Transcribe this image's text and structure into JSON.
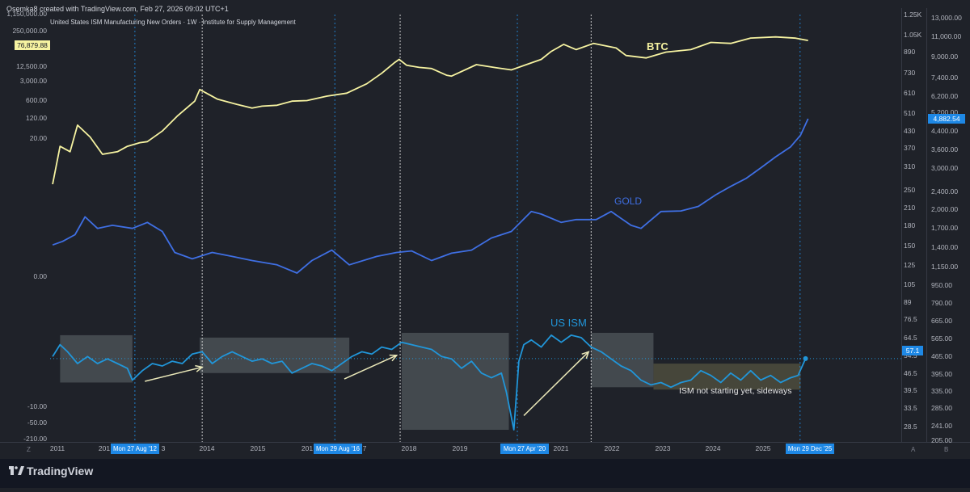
{
  "header": {
    "attribution": "Osemka8 created with TradingView.com, Feb 27, 2026 09:02 UTC+1",
    "symbol_title": "United States ISM Manufacturing New Orders · 1W · Institute for Supply Management"
  },
  "footer": {
    "brand": "TradingView",
    "corner_left": "Z",
    "corner_right_a": "A",
    "corner_right_b": "B"
  },
  "colors": {
    "background": "#1f2229",
    "btc": "#f6f3a1",
    "gold": "#3f6fe3",
    "ism": "#2196d9",
    "shade_gray": "#5a6166",
    "shade_olive": "#4a4a3c",
    "arrow": "#e9e7b8",
    "axis_text": "#b2b5be",
    "highlight_tag": "#1e88e5"
  },
  "chart_data": {
    "type": "line",
    "title": "United States ISM Manufacturing New Orders · 1W · Institute for Supply Management",
    "x_tick_labels": [
      "2011",
      "2014",
      "2015",
      "2018",
      "2019",
      "2021",
      "2022",
      "2023",
      "2024",
      "2025"
    ],
    "x_partial_labels": [
      "201",
      "3",
      "201",
      "7"
    ],
    "x_highlight_tags": [
      "Mon 27 Aug '12",
      "Mon 29 Aug '16",
      "Mon 27 Apr '20",
      "Mon 29 Dec '25"
    ],
    "left_axis_labels": [
      "1,150,000.00",
      "250,000.00",
      "12,500.00",
      "3,000.00",
      "600.00",
      "120.00",
      "20.00",
      "0.00",
      "-10.00",
      "-50.00",
      "-210.00"
    ],
    "left_axis_tag": "76,879.88",
    "mid_axis_labels": [
      "1.25K",
      "1.05K",
      "890",
      "730",
      "610",
      "510",
      "430",
      "370",
      "310",
      "250",
      "210",
      "180",
      "150",
      "125",
      "105",
      "89",
      "76.5",
      "64.5",
      "54.5",
      "46.5",
      "39.5",
      "33.5",
      "28.5"
    ],
    "right_axis_labels": [
      "13,000.00",
      "11,000.00",
      "9,000.00",
      "7,400.00",
      "6,200.00",
      "5,200.00",
      "4,400.00",
      "3,600.00",
      "3,000.00",
      "2,400.00",
      "2,000.00",
      "1,700.00",
      "1,400.00",
      "1,150.00",
      "950.00",
      "790.00",
      "665.00",
      "565.00",
      "465.00",
      "395.00",
      "335.00",
      "285.00",
      "241.00",
      "205.00"
    ],
    "right_axis_tag_gold": "4,882.54",
    "mid_axis_tag_ism": "57.1",
    "series": [
      {
        "name": "BTC",
        "x": [
          2011.0,
          2011.15,
          2011.35,
          2011.5,
          2011.75,
          2012.0,
          2012.3,
          2012.5,
          2012.75,
          2012.9,
          2013.2,
          2013.5,
          2013.85,
          2013.95,
          2014.3,
          2014.7,
          2015.0,
          2015.2,
          2015.5,
          2015.8,
          2016.1,
          2016.5,
          2016.9,
          2017.3,
          2017.6,
          2017.85,
          2017.95,
          2018.1,
          2018.35,
          2018.6,
          2018.9,
          2019.0,
          2019.5,
          2019.9,
          2020.2,
          2020.5,
          2020.8,
          2021.0,
          2021.25,
          2021.5,
          2021.85,
          2022.3,
          2022.5,
          2022.9,
          2023.3,
          2023.8,
          2024.2,
          2024.6,
          2025.0,
          2025.5,
          2025.9,
          2026.15
        ],
        "values": [
          0.3,
          8,
          5,
          50,
          18,
          4,
          5,
          8,
          11,
          12,
          30,
          110,
          400,
          1100,
          480,
          300,
          220,
          260,
          280,
          400,
          420,
          620,
          800,
          1800,
          4500,
          11000,
          15000,
          9000,
          7500,
          6800,
          3800,
          3500,
          9500,
          7200,
          6000,
          9500,
          15000,
          30000,
          55000,
          35000,
          60000,
          40000,
          21000,
          17000,
          28000,
          35000,
          65000,
          60000,
          95000,
          105000,
          94000,
          76880
        ]
      },
      {
        "name": "GOLD",
        "x": [
          2011.0,
          2011.2,
          2011.45,
          2011.65,
          2011.9,
          2012.2,
          2012.6,
          2012.9,
          2013.2,
          2013.45,
          2013.8,
          2014.2,
          2014.6,
          2015.0,
          2015.5,
          2015.9,
          2016.2,
          2016.6,
          2016.95,
          2017.5,
          2017.9,
          2018.2,
          2018.6,
          2019.0,
          2019.4,
          2019.8,
          2020.2,
          2020.6,
          2020.8,
          2021.2,
          2021.5,
          2021.9,
          2022.2,
          2022.6,
          2022.8,
          2023.2,
          2023.6,
          2023.95,
          2024.3,
          2024.6,
          2024.9,
          2025.2,
          2025.5,
          2025.8,
          2026.0,
          2026.15
        ],
        "values": [
          1400,
          1450,
          1550,
          1850,
          1650,
          1700,
          1650,
          1750,
          1600,
          1300,
          1220,
          1300,
          1250,
          1200,
          1150,
          1060,
          1200,
          1330,
          1150,
          1250,
          1300,
          1320,
          1200,
          1290,
          1330,
          1500,
          1600,
          1950,
          1900,
          1750,
          1800,
          1800,
          1950,
          1700,
          1650,
          1950,
          1960,
          2050,
          2300,
          2500,
          2700,
          3000,
          3350,
          3700,
          4150,
          4882.54
        ]
      },
      {
        "name": "US ISM",
        "x": [
          2011.0,
          2011.15,
          2011.3,
          2011.5,
          2011.7,
          2011.9,
          2012.1,
          2012.3,
          2012.5,
          2012.6,
          2012.8,
          2013.0,
          2013.2,
          2013.4,
          2013.6,
          2013.8,
          2014.0,
          2014.2,
          2014.4,
          2014.6,
          2014.8,
          2015.0,
          2015.2,
          2015.4,
          2015.6,
          2015.8,
          2016.0,
          2016.2,
          2016.4,
          2016.6,
          2016.8,
          2017.0,
          2017.2,
          2017.4,
          2017.6,
          2017.8,
          2018.0,
          2018.2,
          2018.4,
          2018.6,
          2018.8,
          2019.0,
          2019.2,
          2019.4,
          2019.6,
          2019.8,
          2020.0,
          2020.1,
          2020.25,
          2020.35,
          2020.45,
          2020.6,
          2020.8,
          2021.0,
          2021.2,
          2021.4,
          2021.6,
          2021.8,
          2022.0,
          2022.2,
          2022.4,
          2022.6,
          2022.8,
          2023.0,
          2023.2,
          2023.4,
          2023.6,
          2023.8,
          2024.0,
          2024.2,
          2024.4,
          2024.6,
          2024.8,
          2025.0,
          2025.2,
          2025.4,
          2025.6,
          2025.8,
          2025.95,
          2026.1
        ],
        "values": [
          58,
          63,
          60,
          55,
          58,
          55,
          57,
          55,
          53,
          48,
          52,
          55,
          54,
          56,
          55,
          59,
          60,
          55,
          58,
          60,
          58,
          56,
          57,
          55,
          56,
          51,
          53,
          55,
          54,
          52,
          55,
          58,
          60,
          59,
          62,
          61,
          64,
          63,
          62,
          61,
          58,
          57,
          53,
          56,
          51,
          49,
          51,
          43,
          27,
          56,
          63,
          65,
          62,
          67,
          64,
          67,
          66,
          62,
          60,
          57,
          54,
          52,
          48,
          46,
          47,
          45,
          47,
          48,
          52,
          50,
          47,
          51,
          48,
          52,
          48,
          50,
          47,
          49,
          50,
          57.1
        ]
      }
    ],
    "annotations": [
      {
        "text": "BTC"
      },
      {
        "text": "GOLD"
      },
      {
        "text": "US ISM"
      },
      {
        "text": "ISM not starting yet, sideways"
      }
    ],
    "shaded_periods": [
      {
        "x": [
          2011.15,
          2012.6
        ],
        "y_range": [
          47,
          67
        ],
        "color": "gray"
      },
      {
        "x": [
          2013.95,
          2016.95
        ],
        "y_range": [
          51,
          66
        ],
        "color": "gray"
      },
      {
        "x": [
          2018.0,
          2020.15
        ],
        "y_range": [
          27,
          68
        ],
        "color": "gray"
      },
      {
        "x": [
          2021.8,
          2023.05
        ],
        "y_range": [
          45,
          68
        ],
        "color": "gray"
      },
      {
        "x": [
          2023.05,
          2026.0
        ],
        "y_range": [
          44,
          55
        ],
        "color": "olive"
      }
    ],
    "xlim": [
      2010.95,
      2026.35
    ],
    "grid": false,
    "legend": "none"
  }
}
